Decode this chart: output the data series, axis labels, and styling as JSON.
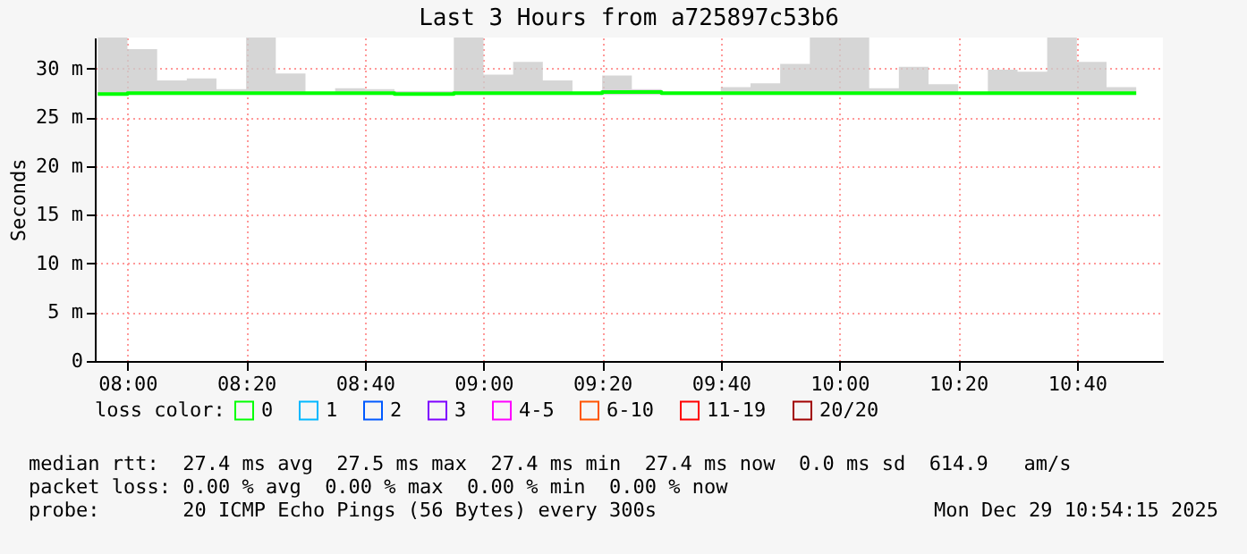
{
  "chart_data": {
    "type": "step",
    "title": "Last 3 Hours from a725897c53b6",
    "ylabel": "Seconds",
    "legend_title": "loss color:",
    "x": [
      "2025-12-29T07:55",
      "2025-12-29T08:00",
      "2025-12-29T08:05",
      "2025-12-29T08:10",
      "2025-12-29T08:15",
      "2025-12-29T08:20",
      "2025-12-29T08:25",
      "2025-12-29T08:30",
      "2025-12-29T08:35",
      "2025-12-29T08:40",
      "2025-12-29T08:45",
      "2025-12-29T08:50",
      "2025-12-29T08:55",
      "2025-12-29T09:00",
      "2025-12-29T09:05",
      "2025-12-29T09:10",
      "2025-12-29T09:15",
      "2025-12-29T09:20",
      "2025-12-29T09:25",
      "2025-12-29T09:30",
      "2025-12-29T09:35",
      "2025-12-29T09:40",
      "2025-12-29T09:45",
      "2025-12-29T09:50",
      "2025-12-29T09:55",
      "2025-12-29T10:00",
      "2025-12-29T10:05",
      "2025-12-29T10:10",
      "2025-12-29T10:15",
      "2025-12-29T10:20",
      "2025-12-29T10:25",
      "2025-12-29T10:30",
      "2025-12-29T10:35",
      "2025-12-29T10:40",
      "2025-12-29T10:45",
      "2025-12-29T10:50"
    ],
    "series": [
      {
        "name": "0",
        "color": "#00ff00",
        "values": [
          27.4,
          27.5,
          27.5,
          27.5,
          27.5,
          27.5,
          27.5,
          27.5,
          27.5,
          27.5,
          27.4,
          27.4,
          27.5,
          27.5,
          27.5,
          27.5,
          27.5,
          27.6,
          27.6,
          27.5,
          27.5,
          27.5,
          27.5,
          27.5,
          27.5,
          27.5,
          27.5,
          27.5,
          27.5,
          27.5,
          27.5,
          27.5,
          27.5,
          27.5,
          27.5,
          27.5
        ],
        "lower": [
          27.3,
          27.3,
          27.3,
          27.3,
          27.3,
          27.3,
          27.3,
          27.3,
          27.3,
          27.3,
          27.3,
          27.3,
          27.3,
          27.3,
          27.3,
          27.3,
          27.3,
          27.3,
          27.3,
          27.3,
          27.3,
          27.3,
          27.3,
          27.3,
          27.3,
          27.3,
          27.3,
          27.3,
          27.3,
          27.3,
          27.3,
          27.3,
          27.3,
          27.3,
          27.3,
          27.3
        ],
        "upper": [
          33.2,
          32.0,
          28.8,
          29.0,
          27.9,
          33.2,
          29.5,
          27.6,
          28.0,
          27.9,
          27.7,
          27.7,
          33.2,
          29.4,
          30.7,
          28.8,
          27.6,
          29.3,
          27.9,
          27.6,
          27.6,
          28.1,
          28.5,
          30.5,
          33.2,
          33.2,
          28.0,
          30.2,
          28.4,
          27.6,
          29.9,
          29.7,
          33.2,
          30.7,
          28.1,
          28.1
        ]
      },
      {
        "name": "1",
        "color": "#00b8ff",
        "values": [
          null,
          null,
          null,
          null,
          null,
          null,
          null,
          null,
          null,
          null,
          null,
          null,
          null,
          null,
          null,
          null,
          null,
          null,
          null,
          null,
          null,
          null,
          null,
          null,
          null,
          null,
          null,
          null,
          null,
          null,
          null,
          null,
          null,
          null,
          null,
          null
        ]
      },
      {
        "name": "2",
        "color": "#0059ff",
        "values": [
          null,
          null,
          null,
          null,
          null,
          null,
          null,
          null,
          null,
          null,
          null,
          null,
          null,
          null,
          null,
          null,
          null,
          null,
          null,
          null,
          null,
          null,
          null,
          null,
          null,
          null,
          null,
          null,
          null,
          null,
          null,
          null,
          null,
          null,
          null,
          null
        ]
      },
      {
        "name": "3",
        "color": "#7e00ff",
        "values": [
          null,
          null,
          null,
          null,
          null,
          null,
          null,
          null,
          null,
          null,
          null,
          null,
          null,
          null,
          null,
          null,
          null,
          null,
          null,
          null,
          null,
          null,
          null,
          null,
          null,
          null,
          null,
          null,
          null,
          null,
          null,
          null,
          null,
          null,
          null,
          null
        ]
      },
      {
        "name": "4-5",
        "color": "#ff00ff",
        "values": [
          null,
          null,
          null,
          null,
          null,
          null,
          null,
          null,
          null,
          null,
          null,
          null,
          null,
          null,
          null,
          null,
          null,
          null,
          null,
          null,
          null,
          null,
          null,
          null,
          null,
          null,
          null,
          null,
          null,
          null,
          null,
          null,
          null,
          null,
          null,
          null
        ]
      },
      {
        "name": "6-10",
        "color": "#ff5500",
        "values": [
          null,
          null,
          null,
          null,
          null,
          null,
          null,
          null,
          null,
          null,
          null,
          null,
          null,
          null,
          null,
          null,
          null,
          null,
          null,
          null,
          null,
          null,
          null,
          null,
          null,
          null,
          null,
          null,
          null,
          null,
          null,
          null,
          null,
          null,
          null,
          null
        ]
      },
      {
        "name": "11-19",
        "color": "#ff0000",
        "values": [
          null,
          null,
          null,
          null,
          null,
          null,
          null,
          null,
          null,
          null,
          null,
          null,
          null,
          null,
          null,
          null,
          null,
          null,
          null,
          null,
          null,
          null,
          null,
          null,
          null,
          null,
          null,
          null,
          null,
          null,
          null,
          null,
          null,
          null,
          null,
          null
        ]
      },
      {
        "name": "20/20",
        "color": "#a10000",
        "values": [
          null,
          null,
          null,
          null,
          null,
          null,
          null,
          null,
          null,
          null,
          null,
          null,
          null,
          null,
          null,
          null,
          null,
          null,
          null,
          null,
          null,
          null,
          null,
          null,
          null,
          null,
          null,
          null,
          null,
          null,
          null,
          null,
          null,
          null,
          null,
          null
        ]
      }
    ],
    "xlim": [
      "2025-12-29T07:54:30",
      "2025-12-29T10:54:30"
    ],
    "xticks": [
      {
        "value": "2025-12-29T08:00",
        "label": "08:00"
      },
      {
        "value": "2025-12-29T08:20",
        "label": "08:20"
      },
      {
        "value": "2025-12-29T08:40",
        "label": "08:40"
      },
      {
        "value": "2025-12-29T09:00",
        "label": "09:00"
      },
      {
        "value": "2025-12-29T09:20",
        "label": "09:20"
      },
      {
        "value": "2025-12-29T09:40",
        "label": "09:40"
      },
      {
        "value": "2025-12-29T10:00",
        "label": "10:00"
      },
      {
        "value": "2025-12-29T10:20",
        "label": "10:20"
      },
      {
        "value": "2025-12-29T10:40",
        "label": "10:40"
      }
    ],
    "ylim": [
      0,
      33.2
    ],
    "yticks": [
      0,
      {
        "value": 5,
        "label": "5 m"
      },
      {
        "value": 10,
        "label": "10 m"
      },
      {
        "value": 15,
        "label": "15 m"
      },
      {
        "value": 20,
        "label": "20 m"
      },
      {
        "value": 25,
        "label": "25 m"
      },
      {
        "value": 30,
        "label": "30 m"
      }
    ],
    "grid": true,
    "legend": "bottom",
    "marker": "none",
    "line_style": "solid",
    "annotations": [
      "median rtt:  27.4 ms avg  27.5 ms max  27.4 ms min  27.4 ms now  0.0 ms sd  614.9   am/s",
      "packet loss: 0.00 % avg  0.00 % max  0.00 % min  0.00 % now",
      "probe:       20 ICMP Echo Pings (56 Bytes) every 300s",
      "Mon Dec 29 10:54:15 2025"
    ]
  }
}
